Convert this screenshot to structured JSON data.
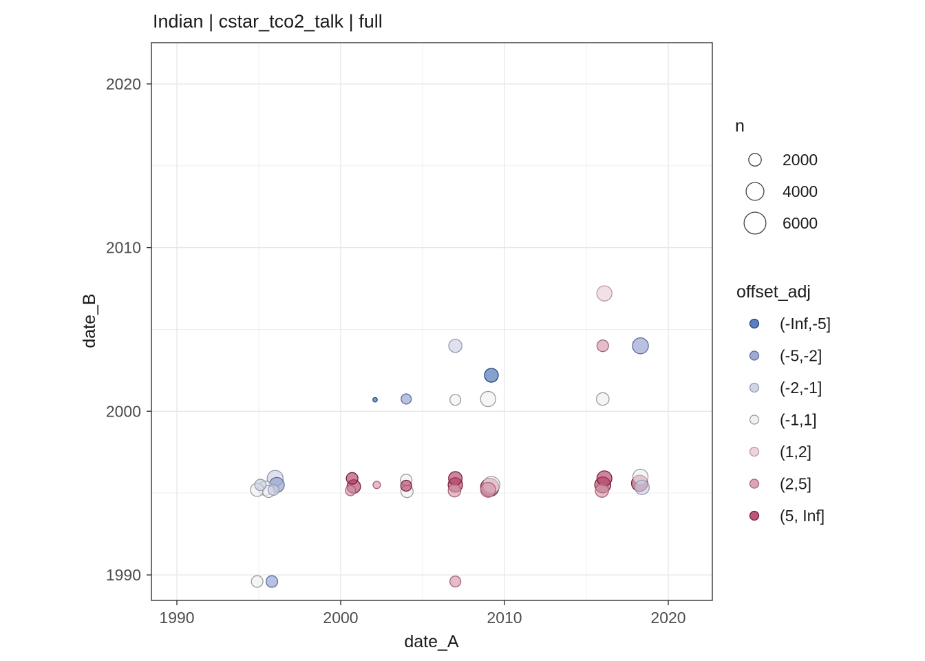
{
  "title": "Indian | cstar_tco2_talk | full",
  "axes": {
    "x_label": "date_A",
    "y_label": "date_B",
    "x_ticks": [
      1990,
      2000,
      2010,
      2020
    ],
    "y_ticks": [
      1990,
      2000,
      2010,
      2020
    ],
    "x_minor_ticks": [
      1995,
      2005,
      2015
    ],
    "y_minor_ticks": [
      1995,
      2005,
      2015
    ]
  },
  "size_legend": {
    "title": "n",
    "entries": [
      {
        "label": "2000",
        "n": 2000
      },
      {
        "label": "4000",
        "n": 4000
      },
      {
        "label": "6000",
        "n": 6000
      }
    ]
  },
  "color_legend": {
    "title": "offset_adj",
    "entries": [
      {
        "label": "(-Inf,-5]",
        "fill": "#3E68B2",
        "stroke": "#24447E"
      },
      {
        "label": "(-5,-2]",
        "fill": "#8C9BCB",
        "stroke": "#5C6C9E"
      },
      {
        "label": "(-2,-1]",
        "fill": "#C9CDDF",
        "stroke": "#9199B4"
      },
      {
        "label": "(-1,1]",
        "fill": "#F0EFEF",
        "stroke": "#9B9B9B"
      },
      {
        "label": "(1,2]",
        "fill": "#E8CDD4",
        "stroke": "#BA98A2"
      },
      {
        "label": "(2,5]",
        "fill": "#D495A8",
        "stroke": "#A56377"
      },
      {
        "label": "(5, Inf]",
        "fill": "#B03A60",
        "stroke": "#741F3D"
      }
    ]
  },
  "chart_data": {
    "type": "scatter",
    "title": "Indian | cstar_tco2_talk | full",
    "xlabel": "date_A",
    "ylabel": "date_B",
    "xlim": [
      1988.4,
      2022.7
    ],
    "ylim": [
      1988.4,
      2022.5
    ],
    "grid": true,
    "size_variable": "n",
    "color_variable": "offset_adj",
    "points": [
      {
        "x": 1994.9,
        "y": 1995.2,
        "n": 2200,
        "cat": "(-1,1]"
      },
      {
        "x": 1995.1,
        "y": 1995.5,
        "n": 1600,
        "cat": "(-2,-1]"
      },
      {
        "x": 1995.4,
        "y": 1995.3,
        "n": 2600,
        "cat": "(-1,1]"
      },
      {
        "x": 1995.6,
        "y": 1995.1,
        "n": 1800,
        "cat": "(-1,1]"
      },
      {
        "x": 1996.0,
        "y": 1995.9,
        "n": 3200,
        "cat": "(-2,-1]"
      },
      {
        "x": 1996.1,
        "y": 1995.5,
        "n": 2800,
        "cat": "(-5,-2]"
      },
      {
        "x": 1995.9,
        "y": 1995.2,
        "n": 1500,
        "cat": "(-2,-1]"
      },
      {
        "x": 1994.9,
        "y": 1989.6,
        "n": 1700,
        "cat": "(-1,1]"
      },
      {
        "x": 1995.8,
        "y": 1989.6,
        "n": 1700,
        "cat": "(-5,-2]"
      },
      {
        "x": 2000.7,
        "y": 1995.9,
        "n": 1700,
        "cat": "(5, Inf]"
      },
      {
        "x": 2000.8,
        "y": 1995.4,
        "n": 2300,
        "cat": "(5, Inf]"
      },
      {
        "x": 2000.6,
        "y": 1995.15,
        "n": 1300,
        "cat": "(2,5]"
      },
      {
        "x": 2002.2,
        "y": 1995.5,
        "n": 700,
        "cat": "(2,5]"
      },
      {
        "x": 2002.1,
        "y": 2000.7,
        "n": 250,
        "cat": "(-Inf,-5]"
      },
      {
        "x": 2004.0,
        "y": 2000.75,
        "n": 1300,
        "cat": "(-5,-2]"
      },
      {
        "x": 2004.0,
        "y": 1995.8,
        "n": 1700,
        "cat": "(-1,1]"
      },
      {
        "x": 2004.0,
        "y": 1995.45,
        "n": 1500,
        "cat": "(5, Inf]"
      },
      {
        "x": 2004.05,
        "y": 1995.1,
        "n": 1900,
        "cat": "(-1,1]"
      },
      {
        "x": 2007.0,
        "y": 2004.0,
        "n": 2200,
        "cat": "(-2,-1]"
      },
      {
        "x": 2007.0,
        "y": 2000.7,
        "n": 1500,
        "cat": "(-1,1]"
      },
      {
        "x": 2007.0,
        "y": 1995.9,
        "n": 2300,
        "cat": "(5, Inf]"
      },
      {
        "x": 2007.0,
        "y": 1995.5,
        "n": 2600,
        "cat": "(5, Inf]"
      },
      {
        "x": 2006.95,
        "y": 1995.15,
        "n": 2000,
        "cat": "(2,5]"
      },
      {
        "x": 2007.0,
        "y": 1989.6,
        "n": 1500,
        "cat": "(2,5]"
      },
      {
        "x": 2009.2,
        "y": 2002.2,
        "n": 2400,
        "cat": "(-Inf,-5]"
      },
      {
        "x": 2009.0,
        "y": 2000.75,
        "n": 2900,
        "cat": "(-1,1]"
      },
      {
        "x": 2009.2,
        "y": 1995.5,
        "n": 3600,
        "cat": "(-1,1]"
      },
      {
        "x": 2009.1,
        "y": 1995.35,
        "n": 4200,
        "cat": "(5, Inf]"
      },
      {
        "x": 2009.0,
        "y": 1995.2,
        "n": 2800,
        "cat": "(2,5]"
      },
      {
        "x": 2016.1,
        "y": 2007.2,
        "n": 2900,
        "cat": "(1,2]"
      },
      {
        "x": 2016.0,
        "y": 2004.0,
        "n": 1700,
        "cat": "(2,5]"
      },
      {
        "x": 2016.0,
        "y": 2000.75,
        "n": 2000,
        "cat": "(-1,1]"
      },
      {
        "x": 2016.1,
        "y": 1995.9,
        "n": 2800,
        "cat": "(5, Inf]"
      },
      {
        "x": 2016.0,
        "y": 1995.5,
        "n": 3200,
        "cat": "(5, Inf]"
      },
      {
        "x": 2015.95,
        "y": 1995.15,
        "n": 2200,
        "cat": "(2,5]"
      },
      {
        "x": 2018.3,
        "y": 2004.0,
        "n": 3200,
        "cat": "(-5,-2]"
      },
      {
        "x": 2018.3,
        "y": 1996.0,
        "n": 2900,
        "cat": "(-1,1]"
      },
      {
        "x": 2018.25,
        "y": 1995.6,
        "n": 3300,
        "cat": "(5, Inf]"
      },
      {
        "x": 2018.4,
        "y": 1995.35,
        "n": 2600,
        "cat": "(-2,-1]"
      }
    ]
  }
}
